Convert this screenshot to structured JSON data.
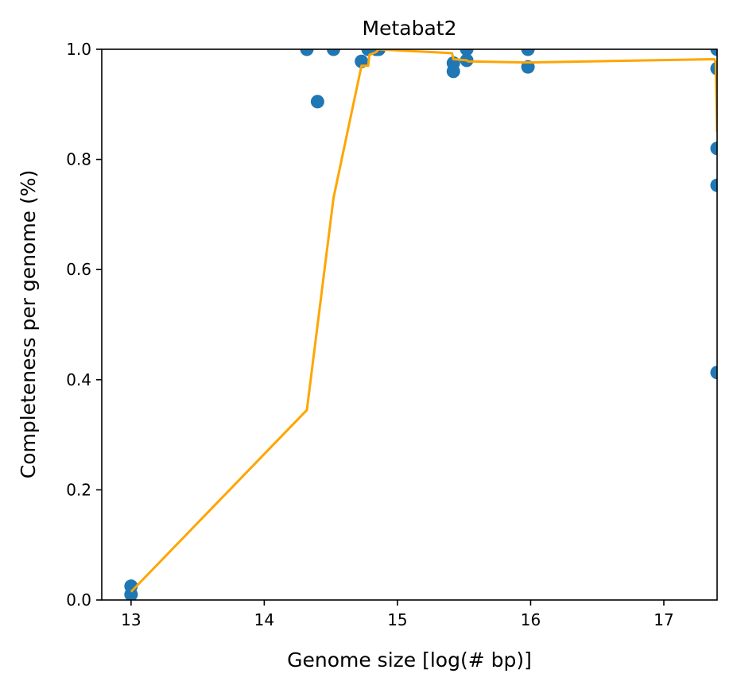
{
  "chart_data": {
    "type": "scatter",
    "title": "Metabat2",
    "xlabel": "Genome size [log(# bp)]",
    "ylabel": "Completeness per genome (%)",
    "xlim": [
      12.78,
      17.4
    ],
    "ylim": [
      0.0,
      1.0
    ],
    "x_ticks": [
      13,
      14,
      15,
      16,
      17
    ],
    "x_tick_labels": [
      "13",
      "14",
      "15",
      "16",
      "17"
    ],
    "y_ticks": [
      0.0,
      0.2,
      0.4,
      0.6,
      0.8,
      1.0
    ],
    "y_tick_labels": [
      "0.0",
      "0.2",
      "0.4",
      "0.6",
      "0.8",
      "1.0"
    ],
    "grid": false,
    "legend": "none",
    "colors": {
      "points": "#1f77b4",
      "line": "#ffa500",
      "axes": "#000000",
      "background": "#ffffff"
    },
    "series": [
      {
        "type": "scatter",
        "x": [
          13.0,
          13.0,
          14.32,
          14.4,
          14.52,
          14.73,
          14.78,
          14.84,
          14.86,
          15.42,
          15.42,
          15.52,
          15.52,
          15.98,
          15.98,
          17.4,
          17.4,
          17.4,
          17.4,
          17.4
        ],
        "y": [
          0.025,
          0.01,
          1.0,
          0.905,
          1.0,
          0.978,
          1.0,
          1.0,
          1.0,
          0.975,
          0.96,
          1.0,
          0.98,
          1.0,
          0.968,
          1.0,
          0.965,
          0.82,
          0.753,
          0.413
        ]
      },
      {
        "type": "line",
        "x": [
          13.0,
          14.32,
          14.52,
          14.73,
          14.78,
          14.79,
          14.84,
          14.86,
          15.0,
          15.41,
          15.42,
          15.52,
          15.53,
          15.98,
          17.38,
          17.39,
          17.4
        ],
        "y": [
          0.015,
          0.345,
          0.73,
          0.97,
          0.97,
          0.99,
          0.995,
          1.0,
          0.998,
          0.993,
          0.982,
          0.98,
          0.978,
          0.976,
          0.982,
          0.975,
          0.85
        ]
      }
    ]
  }
}
